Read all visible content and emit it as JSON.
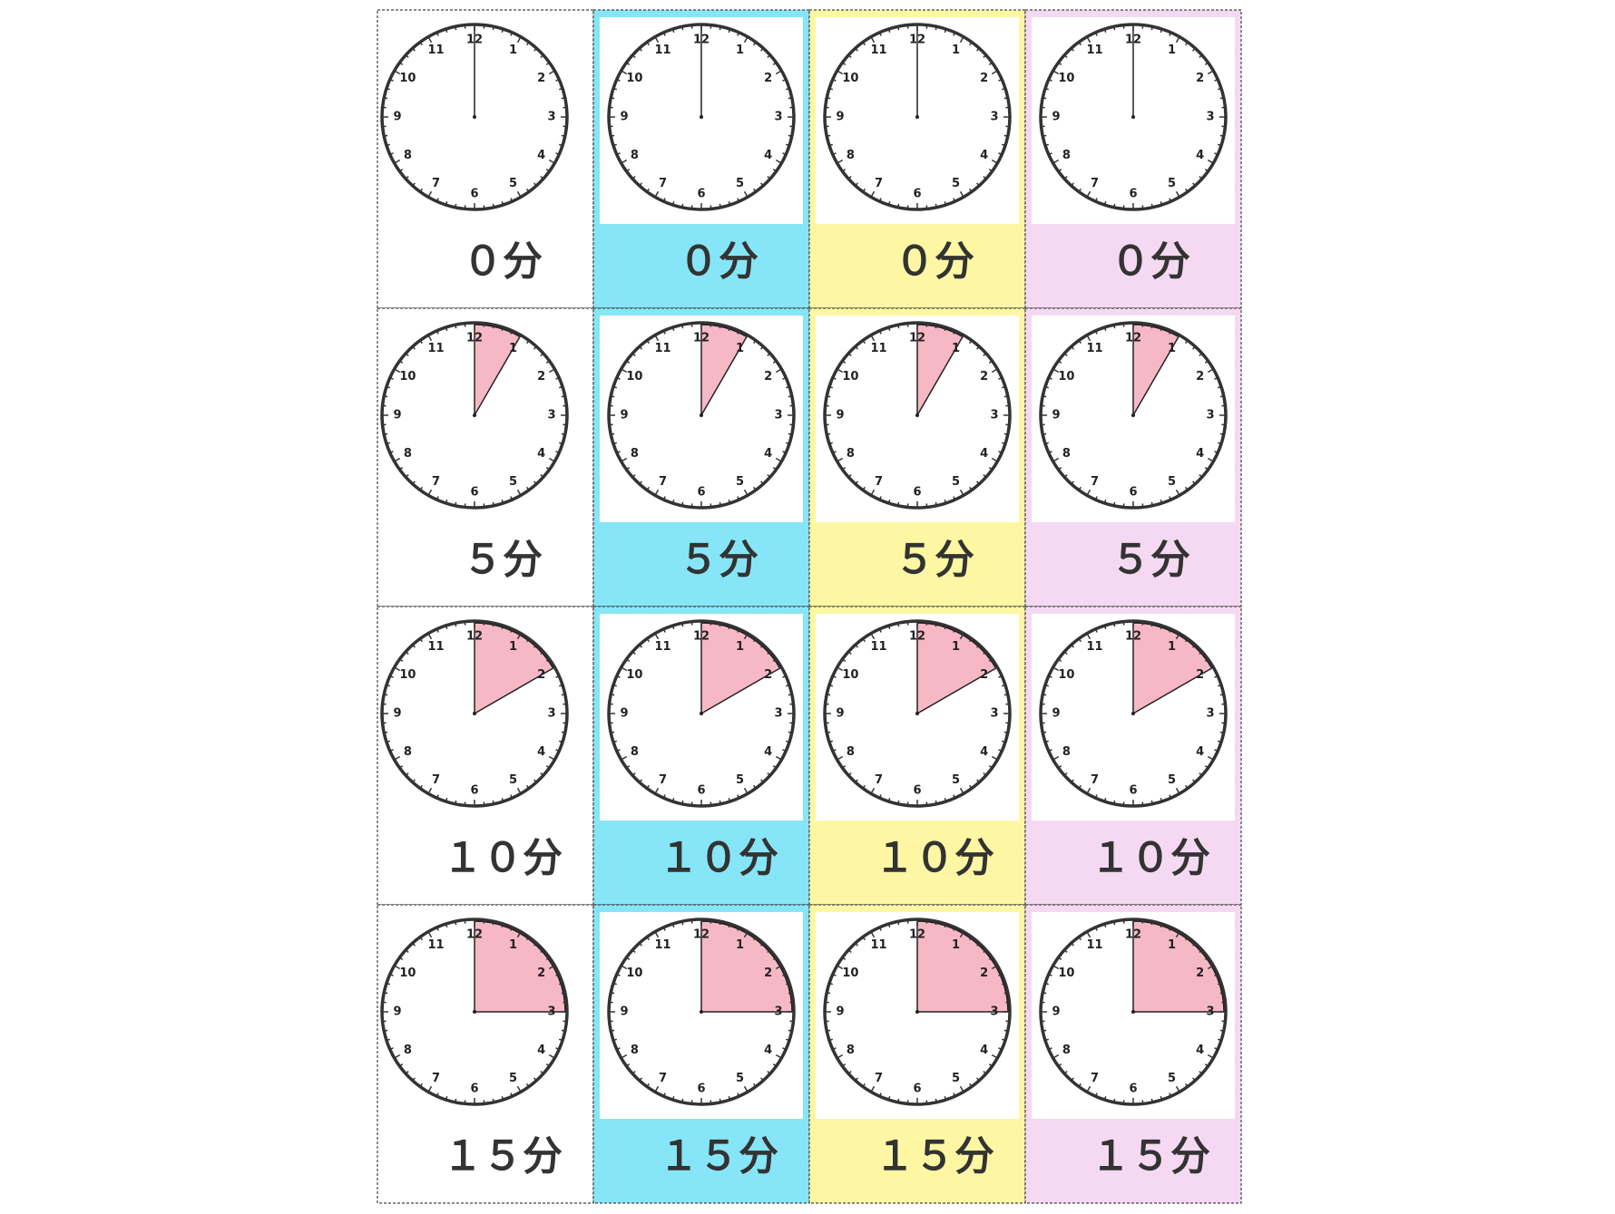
{
  "rows": [
    {
      "value": 0,
      "label": "０分"
    },
    {
      "value": 5,
      "label": "５分"
    },
    {
      "value": 10,
      "label": "１０分"
    },
    {
      "value": 15,
      "label": "１５分"
    }
  ],
  "columns": [
    {
      "color": "#ffffff"
    },
    {
      "color": "#86e6f7"
    },
    {
      "color": "#fdf7a4"
    },
    {
      "color": "#f5d9f2"
    }
  ],
  "clock_numbers": [
    1,
    2,
    3,
    4,
    5,
    6,
    7,
    8,
    9,
    10,
    11,
    12
  ],
  "wedge_color": "#f7b8c6"
}
